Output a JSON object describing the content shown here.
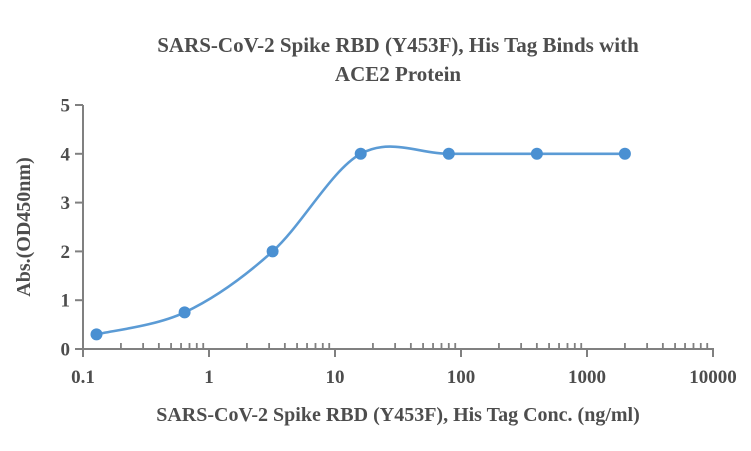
{
  "chart_data": {
    "type": "line",
    "title_line1": "SARS-CoV-2 Spike RBD (Y453F), His Tag Binds with",
    "title_line2": "ACE2 Protein",
    "xlabel": "SARS-CoV-2 Spike RBD (Y453F), His Tag Conc. (ng/ml)",
    "ylabel": "Abs.(OD450nm)",
    "x_scale": "log",
    "xlim": [
      0.1,
      10000
    ],
    "ylim": [
      0,
      5
    ],
    "x_ticks": [
      0.1,
      1,
      10,
      100,
      1000,
      10000
    ],
    "x_tick_labels": [
      "0.1",
      "1",
      "10",
      "100",
      "1000",
      "10000"
    ],
    "y_ticks": [
      0,
      1,
      2,
      3,
      4,
      5
    ],
    "y_tick_labels": [
      "0",
      "1",
      "2",
      "3",
      "4",
      "5"
    ],
    "grid": false,
    "legend": false,
    "series": [
      {
        "x": [
          0.128,
          0.64,
          3.2,
          16,
          80,
          400,
          2000
        ],
        "y": [
          0.3,
          0.75,
          2.0,
          4.0,
          4.0,
          4.0,
          4.0
        ]
      }
    ],
    "colors": {
      "line": "#5b9bd5",
      "marker": "#4a90d2",
      "axis": "#808080",
      "text": "#4d4d4d"
    }
  }
}
